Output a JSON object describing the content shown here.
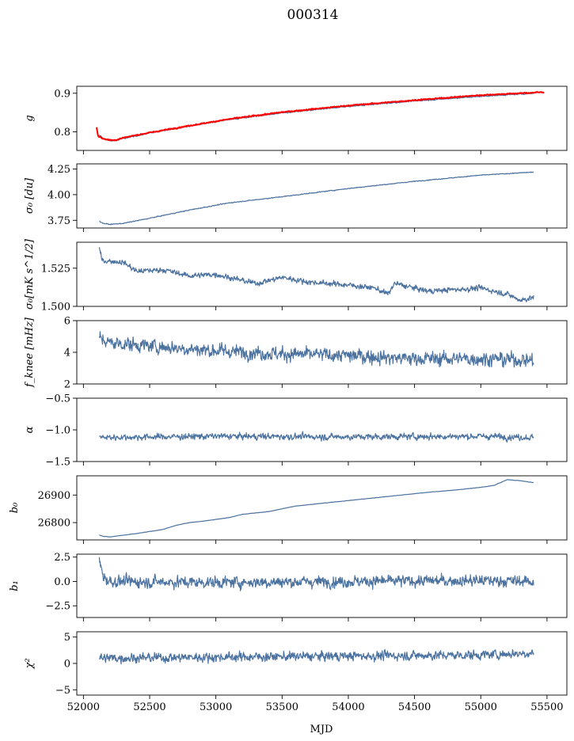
{
  "chart_data": {
    "type": "line",
    "title": "000314",
    "xlabel": "MJD",
    "xlim": [
      51950,
      55650
    ],
    "xticks": [
      52000,
      52500,
      53000,
      53500,
      54000,
      54500,
      55000,
      55500
    ],
    "x_start": 52120,
    "x_end": 55400,
    "line_color": "#4c72a0",
    "overlay_color": "#ff0000",
    "panels": [
      {
        "id": "g",
        "ylabel": "g",
        "ylim": [
          0.752,
          0.918
        ],
        "yticks": [
          0.8,
          0.9
        ],
        "yticklabels": [
          "0.8",
          "0.9"
        ],
        "series": [
          {
            "color": "#4c72a0",
            "noise": 0.0015,
            "points": [
              [
                52120,
                0.792
              ],
              [
                52150,
                0.782
              ],
              [
                52200,
                0.777
              ],
              [
                52250,
                0.778
              ],
              [
                52300,
                0.783
              ],
              [
                52500,
                0.797
              ],
              [
                52800,
                0.815
              ],
              [
                53100,
                0.832
              ],
              [
                53500,
                0.849
              ],
              [
                54000,
                0.866
              ],
              [
                54500,
                0.88
              ],
              [
                55000,
                0.892
              ],
              [
                55400,
                0.9
              ]
            ]
          },
          {
            "color": "#ff0000",
            "noise": 0.0015,
            "x_end": 55480,
            "points": [
              [
                52100,
                0.812
              ],
              [
                52110,
                0.79
              ],
              [
                52150,
                0.782
              ],
              [
                52200,
                0.779
              ],
              [
                52250,
                0.779
              ],
              [
                52300,
                0.785
              ],
              [
                52500,
                0.798
              ],
              [
                52800,
                0.816
              ],
              [
                53100,
                0.833
              ],
              [
                53500,
                0.851
              ],
              [
                54000,
                0.868
              ],
              [
                54500,
                0.882
              ],
              [
                55000,
                0.895
              ],
              [
                55480,
                0.903
              ]
            ]
          }
        ]
      },
      {
        "id": "sigma0-du",
        "ylabel": "σ₀ [du]",
        "ylim": [
          3.675,
          4.3
        ],
        "yticks": [
          3.75,
          4.0,
          4.25
        ],
        "yticklabels": [
          "3.75",
          "4.00",
          "4.25"
        ],
        "series": [
          {
            "color": "#4c72a0",
            "noise": 0.004,
            "points": [
              [
                52120,
                3.74
              ],
              [
                52150,
                3.72
              ],
              [
                52200,
                3.71
              ],
              [
                52300,
                3.72
              ],
              [
                52500,
                3.77
              ],
              [
                52800,
                3.85
              ],
              [
                53100,
                3.92
              ],
              [
                53500,
                3.98
              ],
              [
                54000,
                4.06
              ],
              [
                54500,
                4.13
              ],
              [
                55000,
                4.19
              ],
              [
                55400,
                4.22
              ]
            ]
          }
        ]
      },
      {
        "id": "sigma0-mks",
        "ylabel": "σ₀[mK s^1/2]",
        "ylim": [
          1.5,
          1.542
        ],
        "yticks": [
          1.5,
          1.525
        ],
        "yticklabels": [
          "1.500",
          "1.525"
        ],
        "series": [
          {
            "color": "#4c72a0",
            "noise": 0.0018,
            "points": [
              [
                52120,
                1.538
              ],
              [
                52140,
                1.53
              ],
              [
                52300,
                1.529
              ],
              [
                52400,
                1.523
              ],
              [
                52600,
                1.524
              ],
              [
                52800,
                1.52
              ],
              [
                53000,
                1.521
              ],
              [
                53300,
                1.515
              ],
              [
                53500,
                1.519
              ],
              [
                53700,
                1.516
              ],
              [
                54000,
                1.514
              ],
              [
                54200,
                1.512
              ],
              [
                54300,
                1.508
              ],
              [
                54350,
                1.515
              ],
              [
                54600,
                1.51
              ],
              [
                55000,
                1.512
              ],
              [
                55200,
                1.508
              ],
              [
                55300,
                1.504
              ],
              [
                55400,
                1.506
              ]
            ]
          }
        ]
      },
      {
        "id": "fknee",
        "ylabel": "f_knee [mHz]",
        "ylim": [
          2.0,
          6.0
        ],
        "yticks": [
          2,
          4,
          6
        ],
        "yticklabels": [
          "2",
          "4",
          "6"
        ],
        "series": [
          {
            "color": "#4c72a0",
            "noise": 0.45,
            "points": [
              [
                52120,
                4.9
              ],
              [
                52200,
                4.6
              ],
              [
                52500,
                4.4
              ],
              [
                53000,
                4.1
              ],
              [
                53500,
                3.9
              ],
              [
                54000,
                3.8
              ],
              [
                54500,
                3.6
              ],
              [
                55000,
                3.6
              ],
              [
                55400,
                3.5
              ]
            ]
          }
        ]
      },
      {
        "id": "alpha",
        "ylabel": "α",
        "ylim": [
          -1.5,
          -0.5
        ],
        "yticks": [
          -1.5,
          -1.0,
          -0.5
        ],
        "yticklabels": [
          "−1.5",
          "−1.0",
          "−0.5"
        ],
        "series": [
          {
            "color": "#4c72a0",
            "noise": 0.05,
            "points": [
              [
                52120,
                -1.12
              ],
              [
                53000,
                -1.1
              ],
              [
                54000,
                -1.11
              ],
              [
                55000,
                -1.1
              ],
              [
                55400,
                -1.12
              ]
            ]
          }
        ]
      },
      {
        "id": "b0",
        "ylabel": "b₀",
        "ylim": [
          26737,
          26970
        ],
        "yticks": [
          26800,
          26900
        ],
        "yticklabels": [
          "26800",
          "26900"
        ],
        "series": [
          {
            "color": "#4c72a0",
            "noise": 0.6,
            "points": [
              [
                52120,
                26755
              ],
              [
                52150,
                26750
              ],
              [
                52200,
                26748
              ],
              [
                52400,
                26760
              ],
              [
                52600,
                26775
              ],
              [
                52700,
                26790
              ],
              [
                52800,
                26800
              ],
              [
                52900,
                26805
              ],
              [
                53100,
                26818
              ],
              [
                53200,
                26830
              ],
              [
                53400,
                26840
              ],
              [
                53600,
                26860
              ],
              [
                53800,
                26870
              ],
              [
                54000,
                26880
              ],
              [
                54200,
                26890
              ],
              [
                54400,
                26900
              ],
              [
                54600,
                26910
              ],
              [
                54800,
                26918
              ],
              [
                55000,
                26928
              ],
              [
                55100,
                26935
              ],
              [
                55200,
                26956
              ],
              [
                55300,
                26952
              ],
              [
                55400,
                26945
              ]
            ]
          }
        ]
      },
      {
        "id": "b1",
        "ylabel": "b₁",
        "ylim": [
          -3.7,
          2.8
        ],
        "yticks": [
          -2.5,
          0.0,
          2.5
        ],
        "yticklabels": [
          "−2.5",
          "0.0",
          "2.5"
        ],
        "series": [
          {
            "color": "#4c72a0",
            "noise": 0.6,
            "points": [
              [
                52120,
                2.2
              ],
              [
                52150,
                0.5
              ],
              [
                52200,
                0.0
              ],
              [
                53000,
                -0.1
              ],
              [
                54000,
                0.0
              ],
              [
                55000,
                0.1
              ],
              [
                55400,
                0.0
              ]
            ]
          }
        ]
      },
      {
        "id": "chi2",
        "ylabel": "χ²",
        "ylim": [
          -6.0,
          6.0
        ],
        "yticks": [
          -5,
          0,
          5
        ],
        "yticklabels": [
          "−5",
          "0",
          "5"
        ],
        "series": [
          {
            "color": "#4c72a0",
            "noise": 0.9,
            "points": [
              [
                52120,
                1.0
              ],
              [
                53000,
                1.2
              ],
              [
                54000,
                1.4
              ],
              [
                55000,
                1.6
              ],
              [
                55400,
                2.0
              ]
            ]
          }
        ]
      }
    ]
  }
}
